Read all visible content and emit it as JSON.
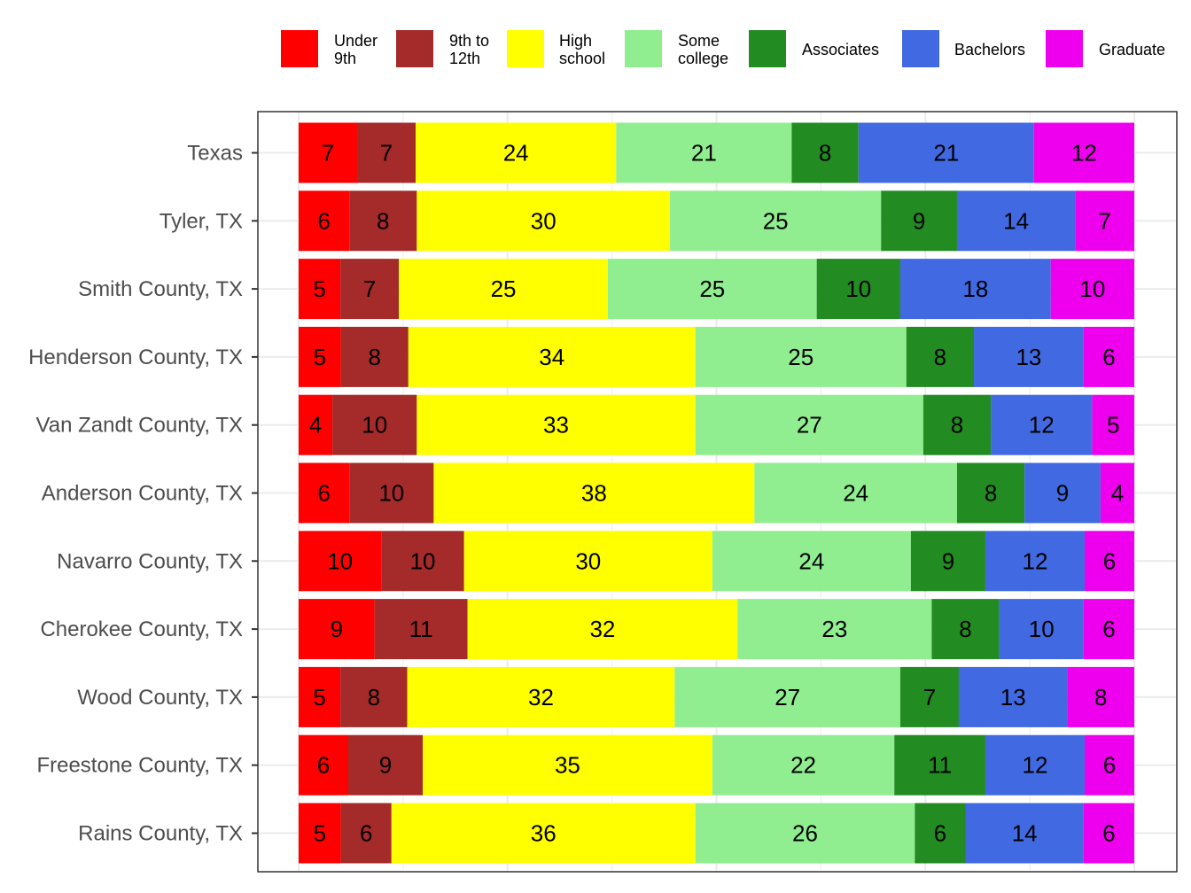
{
  "chart_data": {
    "type": "bar",
    "orientation": "horizontal",
    "stacked": true,
    "normalized": true,
    "title": "",
    "xlabel": "",
    "ylabel": "",
    "xlim": [
      0,
      100
    ],
    "grid": true,
    "legend_position": "top",
    "categories": [
      "Texas",
      "Tyler, TX",
      "Smith County, TX",
      "Henderson County, TX",
      "Van Zandt County, TX",
      "Anderson County, TX",
      "Navarro County, TX",
      "Cherokee County, TX",
      "Wood County, TX",
      "Freestone County, TX",
      "Rains County, TX"
    ],
    "series": [
      {
        "name": "Under 9th",
        "legend_lines": [
          "Under",
          "9th"
        ],
        "color": "#ff0000",
        "values": [
          7,
          6,
          5,
          5,
          4,
          6,
          10,
          9,
          5,
          6,
          5
        ]
      },
      {
        "name": "9th to 12th",
        "legend_lines": [
          "9th to",
          "12th"
        ],
        "color": "#a52a2a",
        "values": [
          7,
          8,
          7,
          8,
          10,
          10,
          10,
          11,
          8,
          9,
          6
        ]
      },
      {
        "name": "High school",
        "legend_lines": [
          "High",
          "school"
        ],
        "color": "#ffff00",
        "values": [
          24,
          30,
          25,
          34,
          33,
          38,
          30,
          32,
          32,
          35,
          36
        ]
      },
      {
        "name": "Some college",
        "legend_lines": [
          "Some",
          "college"
        ],
        "color": "#90ee90",
        "values": [
          21,
          25,
          25,
          25,
          27,
          24,
          24,
          23,
          27,
          22,
          26
        ]
      },
      {
        "name": "Associates",
        "legend_lines": [
          "Associates"
        ],
        "color": "#228b22",
        "values": [
          8,
          9,
          10,
          8,
          8,
          8,
          9,
          8,
          7,
          11,
          6
        ]
      },
      {
        "name": "Bachelors",
        "legend_lines": [
          "Bachelors"
        ],
        "color": "#4169e1",
        "values": [
          21,
          14,
          18,
          13,
          12,
          9,
          12,
          10,
          13,
          12,
          14
        ]
      },
      {
        "name": "Graduate",
        "legend_lines": [
          "Graduate"
        ],
        "color": "#ee00ee",
        "values": [
          12,
          7,
          10,
          6,
          5,
          4,
          6,
          6,
          8,
          6,
          6
        ]
      }
    ]
  }
}
